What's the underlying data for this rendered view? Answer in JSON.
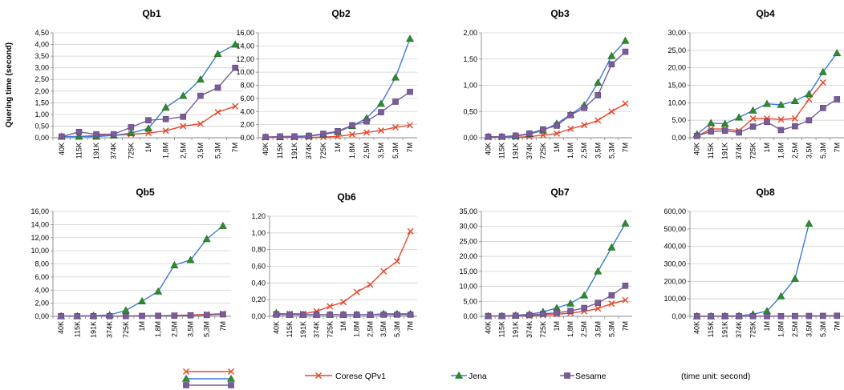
{
  "categories": [
    "40K",
    "115K",
    "191K",
    "374K",
    "725K",
    "1M",
    "1,8M",
    "2,5M",
    "3,5M",
    "5,3M",
    "7M"
  ],
  "y_axis_title": "Quering time (second)",
  "series_style": [
    {
      "name": "Corese QPv1",
      "color": "#e8462a",
      "marker": "x"
    },
    {
      "name": "Jena",
      "color": "#3b7bd4",
      "marker": "triangle",
      "marker_color": "#2e8b2e"
    },
    {
      "name": "Sesame",
      "color": "#7a5c9a",
      "marker": "square"
    }
  ],
  "legend": {
    "entries": [
      "Corese QPv1",
      "Jena",
      "Sesame"
    ],
    "note": "(time unit: second)"
  },
  "chart_data": [
    {
      "type": "line",
      "title": "Qb1",
      "ylim": [
        0,
        4.5
      ],
      "yticks": [
        "0,00",
        "0,50",
        "1,00",
        "1,50",
        "2,00",
        "2,50",
        "3,00",
        "3,50",
        "4,00",
        "4,50"
      ],
      "series": [
        {
          "name": "Corese QPv1",
          "values": [
            0.05,
            0.05,
            0.1,
            0.1,
            0.15,
            0.2,
            0.3,
            0.5,
            0.6,
            1.1,
            1.35
          ]
        },
        {
          "name": "Jena",
          "values": [
            0.05,
            0.05,
            0.05,
            0.1,
            0.2,
            0.4,
            1.3,
            1.8,
            2.5,
            3.6,
            4.0
          ]
        },
        {
          "name": "Sesame",
          "values": [
            0.05,
            0.25,
            0.15,
            0.15,
            0.45,
            0.75,
            0.8,
            0.9,
            1.8,
            2.15,
            3.0
          ]
        }
      ]
    },
    {
      "type": "line",
      "title": "Qb2",
      "ylim": [
        0,
        16
      ],
      "yticks": [
        "0,00",
        "2,00",
        "4,00",
        "6,00",
        "8,00",
        "10,00",
        "12,00",
        "14,00",
        "16,00"
      ],
      "series": [
        {
          "name": "Corese QPv1",
          "values": [
            0.05,
            0.05,
            0.05,
            0.05,
            0.1,
            0.2,
            0.5,
            0.8,
            1.1,
            1.6,
            1.9
          ]
        },
        {
          "name": "Jena",
          "values": [
            0.1,
            0.1,
            0.15,
            0.25,
            0.5,
            0.9,
            1.8,
            3.0,
            5.2,
            9.2,
            15.1
          ]
        },
        {
          "name": "Sesame",
          "values": [
            0.1,
            0.2,
            0.2,
            0.3,
            0.6,
            1.0,
            1.9,
            2.5,
            3.9,
            5.5,
            7.0
          ]
        }
      ]
    },
    {
      "type": "line",
      "title": "Qb3",
      "ylim": [
        0,
        2
      ],
      "yticks": [
        "0,00",
        "0,50",
        "1,00",
        "1,50",
        "2,00"
      ],
      "series": [
        {
          "name": "Corese QPv1",
          "values": [
            0.01,
            0.01,
            0.01,
            0.02,
            0.05,
            0.08,
            0.17,
            0.24,
            0.33,
            0.5,
            0.65
          ]
        },
        {
          "name": "Jena",
          "values": [
            0.02,
            0.02,
            0.03,
            0.07,
            0.14,
            0.27,
            0.44,
            0.62,
            1.05,
            1.56,
            1.85
          ]
        },
        {
          "name": "Sesame",
          "values": [
            0.02,
            0.02,
            0.04,
            0.08,
            0.16,
            0.23,
            0.43,
            0.57,
            0.81,
            1.4,
            1.64
          ]
        }
      ]
    },
    {
      "type": "line",
      "title": "Qb4",
      "ylim": [
        0,
        30
      ],
      "yticks": [
        "0,00",
        "5,00",
        "10,00",
        "15,00",
        "20,00",
        "25,00",
        "30,00"
      ],
      "series": [
        {
          "name": "Corese QPv1",
          "values": [
            0.5,
            2.5,
            2.5,
            2.0,
            5.5,
            5.5,
            5.2,
            5.5,
            11.0,
            15.8,
            null
          ]
        },
        {
          "name": "Jena",
          "values": [
            1.0,
            4.2,
            4.0,
            5.8,
            7.8,
            9.7,
            9.4,
            10.5,
            12.5,
            18.8,
            24.2
          ]
        },
        {
          "name": "Sesame",
          "values": [
            0.5,
            1.8,
            2.0,
            1.5,
            3.2,
            4.5,
            2.2,
            3.3,
            5.0,
            8.5,
            11.0
          ]
        }
      ]
    },
    {
      "type": "line",
      "title": "Qb5",
      "ylim": [
        0,
        16
      ],
      "yticks": [
        "0,00",
        "2,00",
        "4,00",
        "6,00",
        "8,00",
        "10,00",
        "12,00",
        "14,00",
        "16,00"
      ],
      "series": [
        {
          "name": "Corese QPv1",
          "values": [
            0.02,
            0.02,
            0.02,
            0.03,
            0.05,
            0.08,
            0.1,
            0.15,
            0.2,
            0.3,
            0.4
          ]
        },
        {
          "name": "Jena",
          "values": [
            0.05,
            0.05,
            0.1,
            0.2,
            0.9,
            2.3,
            3.8,
            7.8,
            8.6,
            11.8,
            13.8
          ]
        },
        {
          "name": "Sesame",
          "values": [
            0.02,
            0.02,
            0.02,
            0.03,
            0.04,
            0.06,
            0.08,
            0.1,
            0.15,
            0.2,
            0.3
          ]
        }
      ]
    },
    {
      "type": "line",
      "title": "Qb6",
      "ylim": [
        0,
        1.2
      ],
      "yticks": [
        "0,00",
        "0,20",
        "0,40",
        "0,60",
        "0,80",
        "1,00",
        "1,20"
      ],
      "series": [
        {
          "name": "Corese QPv1",
          "values": [
            0.03,
            0.03,
            0.03,
            0.06,
            0.12,
            0.17,
            0.29,
            0.38,
            0.54,
            0.66,
            1.02
          ]
        },
        {
          "name": "Jena",
          "values": [
            0.04,
            0.02,
            0.02,
            0.02,
            0.02,
            0.02,
            0.02,
            0.02,
            0.03,
            0.03,
            0.03
          ]
        },
        {
          "name": "Sesame",
          "values": [
            0.02,
            0.02,
            0.02,
            0.02,
            0.02,
            0.02,
            0.02,
            0.02,
            0.02,
            0.02,
            0.02
          ]
        }
      ]
    },
    {
      "type": "line",
      "title": "Qb7",
      "ylim": [
        0,
        35
      ],
      "yticks": [
        "0,00",
        "5,00",
        "10,00",
        "15,00",
        "20,00",
        "25,00",
        "30,00",
        "35,00"
      ],
      "series": [
        {
          "name": "Corese QPv1",
          "values": [
            0.05,
            0.05,
            0.1,
            0.2,
            0.4,
            0.7,
            1.1,
            1.7,
            2.6,
            4.2,
            5.4
          ]
        },
        {
          "name": "Jena",
          "values": [
            0.1,
            0.15,
            0.3,
            0.7,
            1.5,
            2.8,
            4.3,
            7.0,
            15.0,
            23.0,
            31.0
          ]
        },
        {
          "name": "Sesame",
          "values": [
            0.1,
            0.1,
            0.2,
            0.4,
            0.8,
            1.2,
            1.8,
            2.8,
            4.5,
            7.0,
            10.2
          ]
        }
      ]
    },
    {
      "type": "line",
      "title": "Qb8",
      "ylim": [
        0,
        600
      ],
      "yticks": [
        "0,00",
        "100,00",
        "200,00",
        "300,00",
        "400,00",
        "500,00",
        "600,00"
      ],
      "series": [
        {
          "name": "Corese QPv1",
          "values": [
            0.5,
            0.5,
            0.5,
            0.5,
            1,
            1,
            1.5,
            2,
            2.5,
            3,
            4
          ]
        },
        {
          "name": "Jena",
          "values": [
            1,
            1,
            2,
            3,
            12,
            30,
            115,
            215,
            530,
            null,
            null
          ]
        },
        {
          "name": "Sesame",
          "values": [
            0.5,
            0.5,
            0.5,
            0.5,
            1,
            1,
            1,
            1.5,
            2,
            2.5,
            3
          ]
        }
      ]
    }
  ]
}
